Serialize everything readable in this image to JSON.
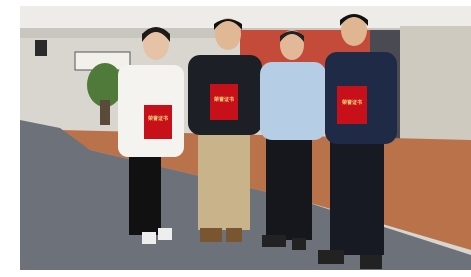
{
  "scene": {
    "certificates": [
      {
        "label": "荣誉证书"
      },
      {
        "label": "荣誉证书"
      },
      {
        "label": "荣誉证书"
      }
    ]
  }
}
